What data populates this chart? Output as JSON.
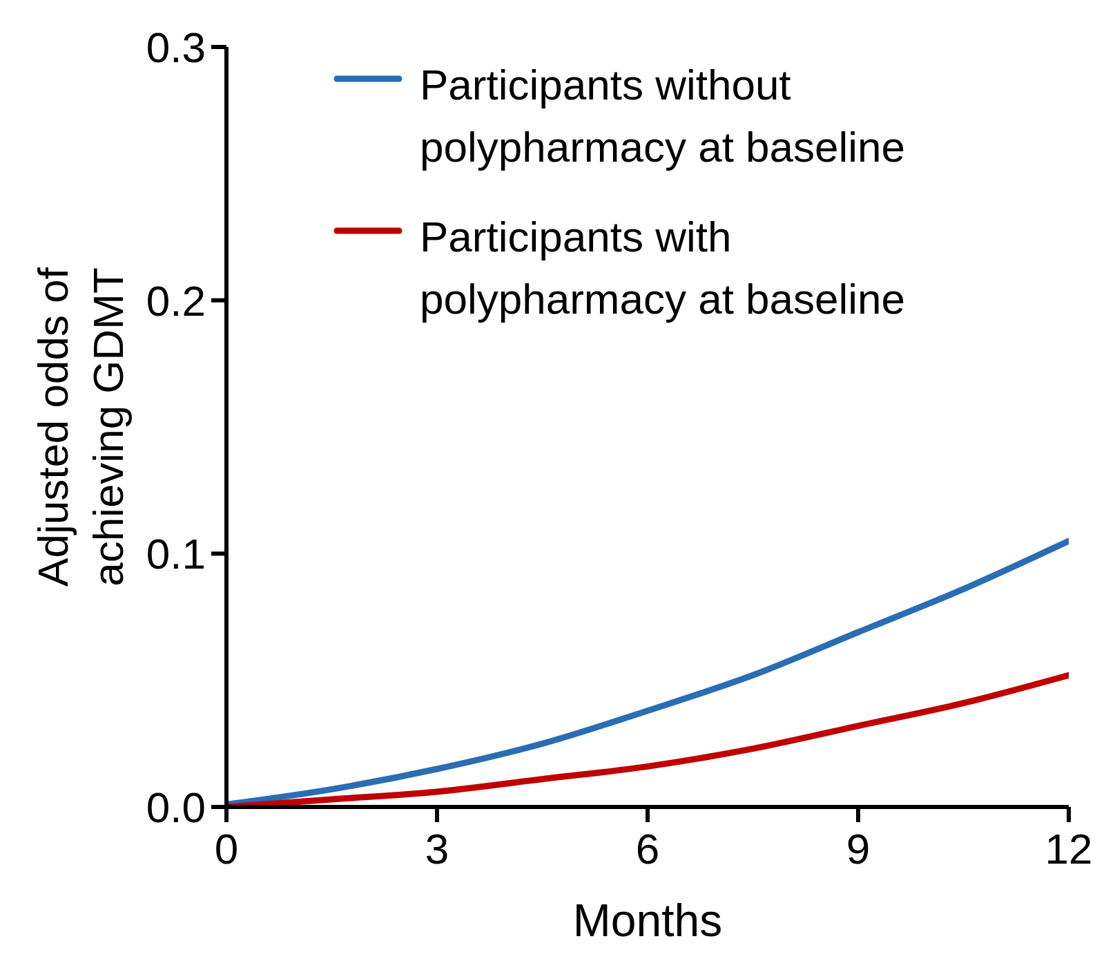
{
  "chart_data": {
    "type": "line",
    "xlabel": "Months",
    "ylabel": "Adjusted odds of achieving GDMT",
    "x": [
      0,
      1.5,
      3,
      4.5,
      6,
      7.5,
      9,
      10.5,
      12
    ],
    "series": [
      {
        "name": "Participants without polypharmacy at baseline",
        "color": "#2a6db5",
        "values": [
          0.001,
          0.007,
          0.015,
          0.025,
          0.038,
          0.052,
          0.069,
          0.086,
          0.105
        ]
      },
      {
        "name": "Participants with polypharmacy at baseline",
        "color": "#c00000",
        "values": [
          0,
          0.003,
          0.006,
          0.011,
          0.016,
          0.023,
          0.032,
          0.041,
          0.052
        ]
      }
    ],
    "xlim": [
      0,
      12
    ],
    "xticks": [
      0,
      3,
      6,
      9,
      12
    ],
    "ylim": [
      0,
      0.3
    ],
    "yticks": [
      {
        "value": 0,
        "label": "0.0"
      },
      {
        "value": 0.1,
        "label": "0.1"
      },
      {
        "value": 0.2,
        "label": "0.2"
      },
      {
        "value": 0.3,
        "label": "0.3"
      }
    ],
    "grid": false,
    "legend": "top",
    "marker": "none",
    "line_style": "solid"
  }
}
